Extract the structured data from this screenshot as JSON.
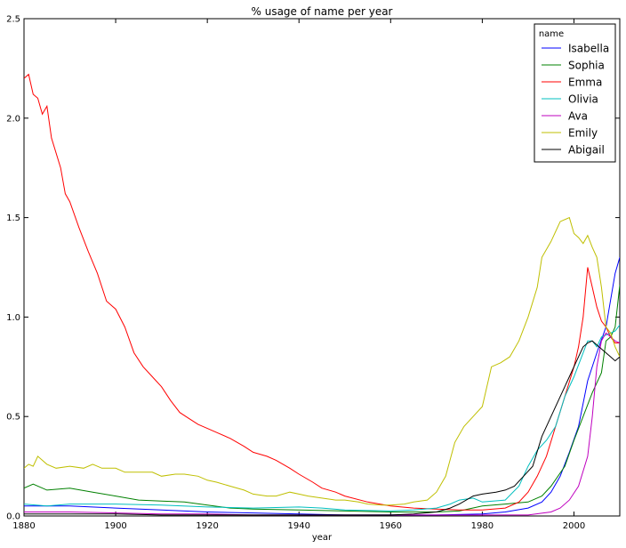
{
  "chart_data": {
    "type": "line",
    "title": "% usage of name per year",
    "xlabel": "year",
    "ylabel": "",
    "xlim": [
      1880,
      2010
    ],
    "ylim": [
      0,
      2.5
    ],
    "xticks": [
      "1880",
      "1900",
      "1920",
      "1940",
      "1960",
      "1980",
      "2000"
    ],
    "yticks": [
      "0.0",
      "0.5",
      "1.0",
      "1.5",
      "2.0",
      "2.5"
    ],
    "legend": {
      "title": "name",
      "position": "top-right"
    },
    "grid": false,
    "series": [
      {
        "name": "Isabella",
        "color": "#0000ff",
        "points": [
          [
            1880,
            0.05
          ],
          [
            1885,
            0.05
          ],
          [
            1890,
            0.05
          ],
          [
            1900,
            0.04
          ],
          [
            1910,
            0.03
          ],
          [
            1920,
            0.02
          ],
          [
            1930,
            0.015
          ],
          [
            1940,
            0.01
          ],
          [
            1950,
            0.005
          ],
          [
            1960,
            0.005
          ],
          [
            1970,
            0.005
          ],
          [
            1980,
            0.01
          ],
          [
            1985,
            0.02
          ],
          [
            1990,
            0.04
          ],
          [
            1993,
            0.07
          ],
          [
            1995,
            0.12
          ],
          [
            1997,
            0.2
          ],
          [
            1999,
            0.32
          ],
          [
            2001,
            0.45
          ],
          [
            2003,
            0.68
          ],
          [
            2005,
            0.82
          ],
          [
            2007,
            0.95
          ],
          [
            2009,
            1.22
          ],
          [
            2010,
            1.3
          ]
        ]
      },
      {
        "name": "Sophia",
        "color": "#008000",
        "points": [
          [
            1880,
            0.14
          ],
          [
            1882,
            0.16
          ],
          [
            1885,
            0.13
          ],
          [
            1890,
            0.14
          ],
          [
            1895,
            0.12
          ],
          [
            1900,
            0.1
          ],
          [
            1905,
            0.08
          ],
          [
            1910,
            0.075
          ],
          [
            1915,
            0.07
          ],
          [
            1920,
            0.055
          ],
          [
            1925,
            0.04
          ],
          [
            1930,
            0.035
          ],
          [
            1940,
            0.03
          ],
          [
            1950,
            0.025
          ],
          [
            1960,
            0.02
          ],
          [
            1970,
            0.02
          ],
          [
            1975,
            0.025
          ],
          [
            1980,
            0.05
          ],
          [
            1985,
            0.06
          ],
          [
            1990,
            0.07
          ],
          [
            1993,
            0.1
          ],
          [
            1995,
            0.15
          ],
          [
            1998,
            0.25
          ],
          [
            2000,
            0.38
          ],
          [
            2002,
            0.5
          ],
          [
            2004,
            0.62
          ],
          [
            2006,
            0.72
          ],
          [
            2007,
            0.88
          ],
          [
            2008,
            0.9
          ],
          [
            2009,
            0.95
          ],
          [
            2010,
            1.16
          ]
        ]
      },
      {
        "name": "Emma",
        "color": "#ff0000",
        "points": [
          [
            1880,
            2.2
          ],
          [
            1881,
            2.22
          ],
          [
            1882,
            2.12
          ],
          [
            1883,
            2.1
          ],
          [
            1884,
            2.02
          ],
          [
            1885,
            2.06
          ],
          [
            1886,
            1.9
          ],
          [
            1888,
            1.75
          ],
          [
            1889,
            1.62
          ],
          [
            1890,
            1.58
          ],
          [
            1892,
            1.45
          ],
          [
            1894,
            1.33
          ],
          [
            1896,
            1.22
          ],
          [
            1898,
            1.08
          ],
          [
            1900,
            1.04
          ],
          [
            1902,
            0.95
          ],
          [
            1904,
            0.82
          ],
          [
            1906,
            0.75
          ],
          [
            1908,
            0.7
          ],
          [
            1910,
            0.65
          ],
          [
            1912,
            0.58
          ],
          [
            1914,
            0.52
          ],
          [
            1916,
            0.49
          ],
          [
            1918,
            0.46
          ],
          [
            1920,
            0.44
          ],
          [
            1922,
            0.42
          ],
          [
            1925,
            0.39
          ],
          [
            1928,
            0.35
          ],
          [
            1930,
            0.32
          ],
          [
            1933,
            0.3
          ],
          [
            1935,
            0.28
          ],
          [
            1938,
            0.24
          ],
          [
            1940,
            0.21
          ],
          [
            1943,
            0.17
          ],
          [
            1945,
            0.14
          ],
          [
            1948,
            0.12
          ],
          [
            1950,
            0.1
          ],
          [
            1955,
            0.07
          ],
          [
            1960,
            0.05
          ],
          [
            1965,
            0.04
          ],
          [
            1970,
            0.035
          ],
          [
            1975,
            0.03
          ],
          [
            1980,
            0.03
          ],
          [
            1985,
            0.04
          ],
          [
            1988,
            0.07
          ],
          [
            1990,
            0.12
          ],
          [
            1992,
            0.2
          ],
          [
            1994,
            0.3
          ],
          [
            1996,
            0.45
          ],
          [
            1998,
            0.6
          ],
          [
            2000,
            0.75
          ],
          [
            2001,
            0.85
          ],
          [
            2002,
            1.0
          ],
          [
            2003,
            1.25
          ],
          [
            2004,
            1.15
          ],
          [
            2005,
            1.05
          ],
          [
            2006,
            0.98
          ],
          [
            2007,
            0.95
          ],
          [
            2008,
            0.9
          ],
          [
            2009,
            0.87
          ],
          [
            2010,
            0.87
          ]
        ]
      },
      {
        "name": "Olivia",
        "color": "#00bfbf",
        "points": [
          [
            1880,
            0.06
          ],
          [
            1885,
            0.05
          ],
          [
            1890,
            0.06
          ],
          [
            1900,
            0.06
          ],
          [
            1910,
            0.055
          ],
          [
            1920,
            0.045
          ],
          [
            1930,
            0.04
          ],
          [
            1940,
            0.045
          ],
          [
            1945,
            0.04
          ],
          [
            1950,
            0.03
          ],
          [
            1960,
            0.025
          ],
          [
            1965,
            0.03
          ],
          [
            1970,
            0.04
          ],
          [
            1973,
            0.06
          ],
          [
            1975,
            0.08
          ],
          [
            1978,
            0.09
          ],
          [
            1980,
            0.07
          ],
          [
            1985,
            0.08
          ],
          [
            1988,
            0.15
          ],
          [
            1990,
            0.25
          ],
          [
            1992,
            0.33
          ],
          [
            1994,
            0.38
          ],
          [
            1996,
            0.45
          ],
          [
            1998,
            0.6
          ],
          [
            2000,
            0.7
          ],
          [
            2002,
            0.82
          ],
          [
            2003,
            0.88
          ],
          [
            2004,
            0.88
          ],
          [
            2005,
            0.85
          ],
          [
            2006,
            0.9
          ],
          [
            2008,
            0.92
          ],
          [
            2009,
            0.93
          ],
          [
            2010,
            0.96
          ]
        ]
      },
      {
        "name": "Ava",
        "color": "#bf00bf",
        "points": [
          [
            1880,
            0.02
          ],
          [
            1890,
            0.02
          ],
          [
            1900,
            0.015
          ],
          [
            1910,
            0.01
          ],
          [
            1920,
            0.01
          ],
          [
            1930,
            0.005
          ],
          [
            1940,
            0.005
          ],
          [
            1950,
            0.005
          ],
          [
            1960,
            0.005
          ],
          [
            1970,
            0.005
          ],
          [
            1980,
            0.005
          ],
          [
            1990,
            0.005
          ],
          [
            1995,
            0.02
          ],
          [
            1997,
            0.04
          ],
          [
            1999,
            0.08
          ],
          [
            2001,
            0.15
          ],
          [
            2003,
            0.3
          ],
          [
            2004,
            0.5
          ],
          [
            2005,
            0.75
          ],
          [
            2006,
            0.88
          ],
          [
            2007,
            0.92
          ],
          [
            2008,
            0.9
          ],
          [
            2009,
            0.88
          ],
          [
            2010,
            0.87
          ]
        ]
      },
      {
        "name": "Emily",
        "color": "#bfbf00",
        "points": [
          [
            1880,
            0.24
          ],
          [
            1881,
            0.26
          ],
          [
            1882,
            0.25
          ],
          [
            1883,
            0.3
          ],
          [
            1885,
            0.26
          ],
          [
            1887,
            0.24
          ],
          [
            1890,
            0.25
          ],
          [
            1893,
            0.24
          ],
          [
            1895,
            0.26
          ],
          [
            1897,
            0.24
          ],
          [
            1900,
            0.24
          ],
          [
            1902,
            0.22
          ],
          [
            1905,
            0.22
          ],
          [
            1908,
            0.22
          ],
          [
            1910,
            0.2
          ],
          [
            1913,
            0.21
          ],
          [
            1915,
            0.21
          ],
          [
            1918,
            0.2
          ],
          [
            1920,
            0.18
          ],
          [
            1922,
            0.17
          ],
          [
            1925,
            0.15
          ],
          [
            1928,
            0.13
          ],
          [
            1930,
            0.11
          ],
          [
            1933,
            0.1
          ],
          [
            1935,
            0.1
          ],
          [
            1938,
            0.12
          ],
          [
            1940,
            0.11
          ],
          [
            1942,
            0.1
          ],
          [
            1945,
            0.09
          ],
          [
            1948,
            0.08
          ],
          [
            1950,
            0.08
          ],
          [
            1953,
            0.07
          ],
          [
            1955,
            0.06
          ],
          [
            1958,
            0.055
          ],
          [
            1960,
            0.055
          ],
          [
            1963,
            0.06
          ],
          [
            1965,
            0.07
          ],
          [
            1968,
            0.08
          ],
          [
            1970,
            0.12
          ],
          [
            1972,
            0.2
          ],
          [
            1974,
            0.37
          ],
          [
            1976,
            0.45
          ],
          [
            1978,
            0.5
          ],
          [
            1980,
            0.55
          ],
          [
            1982,
            0.75
          ],
          [
            1984,
            0.77
          ],
          [
            1986,
            0.8
          ],
          [
            1988,
            0.88
          ],
          [
            1990,
            1.0
          ],
          [
            1992,
            1.15
          ],
          [
            1993,
            1.3
          ],
          [
            1995,
            1.38
          ],
          [
            1997,
            1.48
          ],
          [
            1999,
            1.5
          ],
          [
            2000,
            1.42
          ],
          [
            2001,
            1.4
          ],
          [
            2002,
            1.37
          ],
          [
            2003,
            1.41
          ],
          [
            2004,
            1.35
          ],
          [
            2005,
            1.3
          ],
          [
            2006,
            1.15
          ],
          [
            2007,
            0.95
          ],
          [
            2008,
            0.92
          ],
          [
            2009,
            0.85
          ],
          [
            2010,
            0.8
          ]
        ]
      },
      {
        "name": "Abigail",
        "color": "#000000",
        "points": [
          [
            1880,
            0.01
          ],
          [
            1890,
            0.01
          ],
          [
            1900,
            0.01
          ],
          [
            1910,
            0.005
          ],
          [
            1920,
            0.005
          ],
          [
            1930,
            0.005
          ],
          [
            1940,
            0.005
          ],
          [
            1950,
            0.005
          ],
          [
            1960,
            0.005
          ],
          [
            1965,
            0.01
          ],
          [
            1970,
            0.02
          ],
          [
            1973,
            0.04
          ],
          [
            1975,
            0.06
          ],
          [
            1978,
            0.1
          ],
          [
            1980,
            0.11
          ],
          [
            1983,
            0.12
          ],
          [
            1985,
            0.13
          ],
          [
            1987,
            0.15
          ],
          [
            1989,
            0.2
          ],
          [
            1991,
            0.25
          ],
          [
            1993,
            0.4
          ],
          [
            1995,
            0.5
          ],
          [
            1997,
            0.6
          ],
          [
            1999,
            0.7
          ],
          [
            2001,
            0.8
          ],
          [
            2002,
            0.85
          ],
          [
            2003,
            0.87
          ],
          [
            2004,
            0.88
          ],
          [
            2005,
            0.86
          ],
          [
            2006,
            0.84
          ],
          [
            2007,
            0.82
          ],
          [
            2008,
            0.8
          ],
          [
            2009,
            0.78
          ],
          [
            2010,
            0.8
          ]
        ]
      }
    ]
  }
}
